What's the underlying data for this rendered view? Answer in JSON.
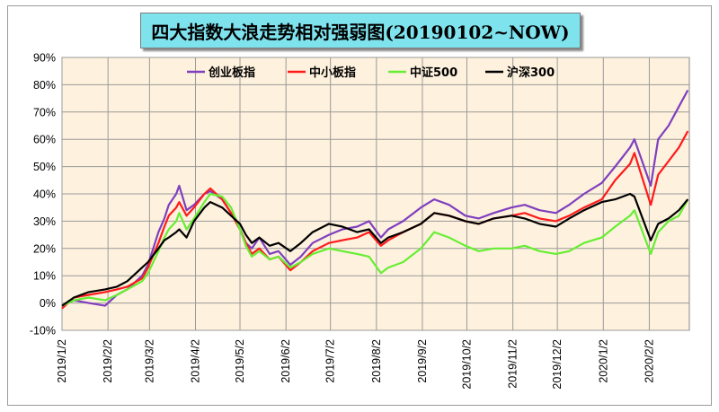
{
  "title": "四大指数大浪走势相对强弱图(20190102~NOW)",
  "chart_data": {
    "type": "line",
    "title": "四大指数大浪走势相对强弱图(20190102~NOW)",
    "yunit": "%",
    "ylim": [
      -10,
      90
    ],
    "yticks": [
      "90%",
      "80%",
      "70%",
      "60%",
      "50%",
      "40%",
      "30%",
      "20%",
      "10%",
      "0%",
      "-10%"
    ],
    "xticks": [
      "2019/1/2",
      "2019/2/2",
      "2019/3/2",
      "2019/4/2",
      "2019/5/2",
      "2019/6/2",
      "2019/7/2",
      "2019/8/2",
      "2019/9/2",
      "2019/10/2",
      "2019/11/2",
      "2019/12/2",
      "2020/1/2",
      "2020/2/2"
    ],
    "x_end": "2020/2/29",
    "grid": true,
    "legend_position": "top",
    "series": [
      {
        "name": "创业板指",
        "color": "#7f3fbf",
        "points": [
          [
            "2019/1/2",
            -1
          ],
          [
            "2019/1/10",
            1
          ],
          [
            "2019/1/20",
            0
          ],
          [
            "2019/1/31",
            -1
          ],
          [
            "2019/2/8",
            3
          ],
          [
            "2019/2/15",
            5
          ],
          [
            "2019/2/25",
            10
          ],
          [
            "2019/3/1",
            14
          ],
          [
            "2019/3/8",
            26
          ],
          [
            "2019/3/12",
            31
          ],
          [
            "2019/3/15",
            36
          ],
          [
            "2019/3/20",
            40
          ],
          [
            "2019/3/22",
            43
          ],
          [
            "2019/3/27",
            34
          ],
          [
            "2019/4/1",
            36
          ],
          [
            "2019/4/8",
            40
          ],
          [
            "2019/4/12",
            41
          ],
          [
            "2019/4/20",
            38
          ],
          [
            "2019/4/26",
            33
          ],
          [
            "2019/5/2",
            27
          ],
          [
            "2019/5/6",
            22
          ],
          [
            "2019/5/10",
            20
          ],
          [
            "2019/5/15",
            24
          ],
          [
            "2019/5/22",
            18
          ],
          [
            "2019/5/28",
            19
          ],
          [
            "2019/6/5",
            14
          ],
          [
            "2019/6/12",
            17
          ],
          [
            "2019/6/20",
            22
          ],
          [
            "2019/7/1",
            25
          ],
          [
            "2019/7/10",
            27
          ],
          [
            "2019/7/20",
            28
          ],
          [
            "2019/7/28",
            30
          ],
          [
            "2019/8/5",
            24
          ],
          [
            "2019/8/10",
            27
          ],
          [
            "2019/8/20",
            30
          ],
          [
            "2019/9/1",
            35
          ],
          [
            "2019/9/10",
            38
          ],
          [
            "2019/9/20",
            36
          ],
          [
            "2019/10/1",
            32
          ],
          [
            "2019/10/10",
            31
          ],
          [
            "2019/10/20",
            33
          ],
          [
            "2019/11/1",
            35
          ],
          [
            "2019/11/10",
            36
          ],
          [
            "2019/11/20",
            34
          ],
          [
            "2019/12/1",
            33
          ],
          [
            "2019/12/10",
            36
          ],
          [
            "2019/12/20",
            40
          ],
          [
            "2020/1/1",
            44
          ],
          [
            "2020/1/10",
            50
          ],
          [
            "2020/1/20",
            57
          ],
          [
            "2020/1/23",
            60
          ],
          [
            "2020/2/3",
            43
          ],
          [
            "2020/2/8",
            60
          ],
          [
            "2020/2/15",
            65
          ],
          [
            "2020/2/22",
            72
          ],
          [
            "2020/2/28",
            78
          ]
        ]
      },
      {
        "name": "中小板指",
        "color": "#ff1a1a",
        "points": [
          [
            "2019/1/2",
            -2
          ],
          [
            "2019/1/10",
            2
          ],
          [
            "2019/1/20",
            3
          ],
          [
            "2019/1/31",
            4
          ],
          [
            "2019/2/8",
            5
          ],
          [
            "2019/2/15",
            6
          ],
          [
            "2019/2/25",
            9
          ],
          [
            "2019/3/1",
            13
          ],
          [
            "2019/3/8",
            22
          ],
          [
            "2019/3/12",
            28
          ],
          [
            "2019/3/15",
            32
          ],
          [
            "2019/3/20",
            35
          ],
          [
            "2019/3/22",
            37
          ],
          [
            "2019/3/27",
            32
          ],
          [
            "2019/4/1",
            35
          ],
          [
            "2019/4/8",
            40
          ],
          [
            "2019/4/12",
            42
          ],
          [
            "2019/4/20",
            38
          ],
          [
            "2019/4/26",
            33
          ],
          [
            "2019/5/2",
            27
          ],
          [
            "2019/5/6",
            22
          ],
          [
            "2019/5/10",
            18
          ],
          [
            "2019/5/15",
            20
          ],
          [
            "2019/5/22",
            16
          ],
          [
            "2019/5/28",
            17
          ],
          [
            "2019/6/5",
            12
          ],
          [
            "2019/6/12",
            15
          ],
          [
            "2019/6/20",
            19
          ],
          [
            "2019/7/1",
            22
          ],
          [
            "2019/7/10",
            23
          ],
          [
            "2019/7/20",
            24
          ],
          [
            "2019/7/28",
            26
          ],
          [
            "2019/8/5",
            21
          ],
          [
            "2019/8/10",
            23
          ],
          [
            "2019/8/20",
            26
          ],
          [
            "2019/9/1",
            29
          ],
          [
            "2019/9/10",
            33
          ],
          [
            "2019/9/20",
            32
          ],
          [
            "2019/10/1",
            30
          ],
          [
            "2019/10/10",
            29
          ],
          [
            "2019/10/20",
            31
          ],
          [
            "2019/11/1",
            32
          ],
          [
            "2019/11/10",
            33
          ],
          [
            "2019/11/20",
            31
          ],
          [
            "2019/12/1",
            30
          ],
          [
            "2019/12/10",
            32
          ],
          [
            "2019/12/20",
            35
          ],
          [
            "2020/1/1",
            38
          ],
          [
            "2020/1/10",
            45
          ],
          [
            "2020/1/20",
            51
          ],
          [
            "2020/1/23",
            55
          ],
          [
            "2020/2/3",
            36
          ],
          [
            "2020/2/8",
            47
          ],
          [
            "2020/2/15",
            52
          ],
          [
            "2020/2/22",
            57
          ],
          [
            "2020/2/28",
            63
          ]
        ]
      },
      {
        "name": "中证500",
        "color": "#66ee33",
        "points": [
          [
            "2019/1/2",
            -1
          ],
          [
            "2019/1/10",
            1
          ],
          [
            "2019/1/20",
            2
          ],
          [
            "2019/1/31",
            1
          ],
          [
            "2019/2/8",
            3
          ],
          [
            "2019/2/15",
            5
          ],
          [
            "2019/2/25",
            8
          ],
          [
            "2019/3/1",
            11
          ],
          [
            "2019/3/8",
            19
          ],
          [
            "2019/3/12",
            24
          ],
          [
            "2019/3/15",
            27
          ],
          [
            "2019/3/20",
            30
          ],
          [
            "2019/3/22",
            33
          ],
          [
            "2019/3/27",
            27
          ],
          [
            "2019/4/1",
            31
          ],
          [
            "2019/4/8",
            37
          ],
          [
            "2019/4/12",
            40
          ],
          [
            "2019/4/20",
            39
          ],
          [
            "2019/4/26",
            35
          ],
          [
            "2019/5/2",
            27
          ],
          [
            "2019/5/6",
            21
          ],
          [
            "2019/5/10",
            17
          ],
          [
            "2019/5/15",
            19
          ],
          [
            "2019/5/22",
            16
          ],
          [
            "2019/5/28",
            17
          ],
          [
            "2019/6/5",
            13
          ],
          [
            "2019/6/12",
            15
          ],
          [
            "2019/6/20",
            18
          ],
          [
            "2019/7/1",
            20
          ],
          [
            "2019/7/10",
            19
          ],
          [
            "2019/7/20",
            18
          ],
          [
            "2019/7/28",
            17
          ],
          [
            "2019/8/5",
            11
          ],
          [
            "2019/8/10",
            13
          ],
          [
            "2019/8/20",
            15
          ],
          [
            "2019/9/1",
            20
          ],
          [
            "2019/9/10",
            26
          ],
          [
            "2019/9/20",
            24
          ],
          [
            "2019/10/1",
            21
          ],
          [
            "2019/10/10",
            19
          ],
          [
            "2019/10/20",
            20
          ],
          [
            "2019/11/1",
            20
          ],
          [
            "2019/11/10",
            21
          ],
          [
            "2019/11/20",
            19
          ],
          [
            "2019/12/1",
            18
          ],
          [
            "2019/12/10",
            19
          ],
          [
            "2019/12/20",
            22
          ],
          [
            "2020/1/1",
            24
          ],
          [
            "2020/1/10",
            28
          ],
          [
            "2020/1/20",
            32
          ],
          [
            "2020/1/23",
            34
          ],
          [
            "2020/2/3",
            18
          ],
          [
            "2020/2/8",
            26
          ],
          [
            "2020/2/15",
            30
          ],
          [
            "2020/2/22",
            32
          ],
          [
            "2020/2/28",
            38
          ]
        ]
      },
      {
        "name": "沪深300",
        "color": "#000000",
        "points": [
          [
            "2019/1/2",
            -1
          ],
          [
            "2019/1/10",
            2
          ],
          [
            "2019/1/20",
            4
          ],
          [
            "2019/1/31",
            5
          ],
          [
            "2019/2/8",
            6
          ],
          [
            "2019/2/15",
            8
          ],
          [
            "2019/2/25",
            13
          ],
          [
            "2019/3/1",
            15
          ],
          [
            "2019/3/8",
            20
          ],
          [
            "2019/3/12",
            23
          ],
          [
            "2019/3/15",
            24
          ],
          [
            "2019/3/20",
            26
          ],
          [
            "2019/3/22",
            27
          ],
          [
            "2019/3/27",
            24
          ],
          [
            "2019/4/1",
            30
          ],
          [
            "2019/4/8",
            35
          ],
          [
            "2019/4/12",
            37
          ],
          [
            "2019/4/20",
            35
          ],
          [
            "2019/4/26",
            32
          ],
          [
            "2019/5/2",
            29
          ],
          [
            "2019/5/6",
            25
          ],
          [
            "2019/5/10",
            22
          ],
          [
            "2019/5/15",
            24
          ],
          [
            "2019/5/22",
            21
          ],
          [
            "2019/5/28",
            22
          ],
          [
            "2019/6/5",
            19
          ],
          [
            "2019/6/12",
            22
          ],
          [
            "2019/6/20",
            26
          ],
          [
            "2019/7/1",
            29
          ],
          [
            "2019/7/10",
            28
          ],
          [
            "2019/7/20",
            26
          ],
          [
            "2019/7/28",
            27
          ],
          [
            "2019/8/5",
            22
          ],
          [
            "2019/8/10",
            24
          ],
          [
            "2019/8/20",
            26
          ],
          [
            "2019/9/1",
            29
          ],
          [
            "2019/9/10",
            33
          ],
          [
            "2019/9/20",
            32
          ],
          [
            "2019/10/1",
            30
          ],
          [
            "2019/10/10",
            29
          ],
          [
            "2019/10/20",
            31
          ],
          [
            "2019/11/1",
            32
          ],
          [
            "2019/11/10",
            31
          ],
          [
            "2019/11/20",
            29
          ],
          [
            "2019/12/1",
            28
          ],
          [
            "2019/12/10",
            31
          ],
          [
            "2019/12/20",
            34
          ],
          [
            "2020/1/1",
            37
          ],
          [
            "2020/1/10",
            38
          ],
          [
            "2020/1/20",
            40
          ],
          [
            "2020/1/23",
            39
          ],
          [
            "2020/2/3",
            23
          ],
          [
            "2020/2/8",
            29
          ],
          [
            "2020/2/15",
            31
          ],
          [
            "2020/2/22",
            34
          ],
          [
            "2020/2/28",
            38
          ]
        ]
      }
    ]
  }
}
